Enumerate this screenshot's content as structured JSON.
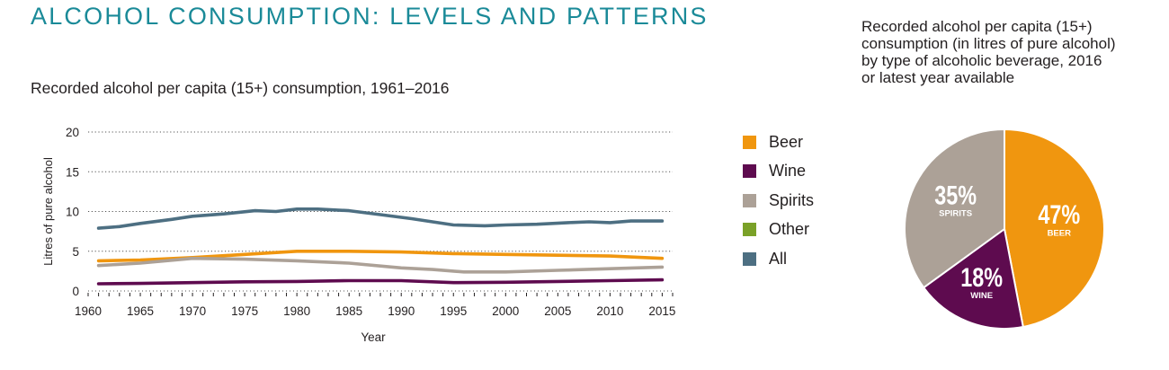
{
  "page": {
    "title": "ALCOHOL CONSUMPTION: LEVELS AND PATTERNS"
  },
  "colors": {
    "title": "#1a8a98",
    "beer": "#f0960f",
    "wine": "#5e0b4f",
    "spirits": "#aca197",
    "other": "#7aa128",
    "all": "#4d6f82",
    "grid": "#555555"
  },
  "chart_data": [
    {
      "type": "line",
      "title": "Recorded alcohol per capita (15+) consumption, 1961–2016",
      "xlabel": "Year",
      "ylabel": "Litres of pure alcohol",
      "xlim": [
        1960,
        2016
      ],
      "ylim": [
        0,
        20
      ],
      "x_ticks": [
        "1960",
        "1965",
        "1970",
        "1975",
        "1980",
        "1985",
        "1990",
        "1995",
        "2000",
        "2005",
        "2010",
        "2015"
      ],
      "y_ticks": [
        "0",
        "5",
        "10",
        "15",
        "20"
      ],
      "grid": "horizontal-dotted",
      "legend_position": "right",
      "legend": [
        "Beer",
        "Wine",
        "Spirits",
        "Other",
        "All"
      ],
      "series": [
        {
          "name": "All",
          "color": "#4d6f82",
          "points": [
            [
              1961,
              7.9
            ],
            [
              1963,
              8.1
            ],
            [
              1965,
              8.5
            ],
            [
              1968,
              9.0
            ],
            [
              1970,
              9.4
            ],
            [
              1973,
              9.7
            ],
            [
              1976,
              10.1
            ],
            [
              1978,
              10.0
            ],
            [
              1980,
              10.3
            ],
            [
              1982,
              10.3
            ],
            [
              1985,
              10.1
            ],
            [
              1988,
              9.6
            ],
            [
              1991,
              9.1
            ],
            [
              1993,
              8.7
            ],
            [
              1995,
              8.3
            ],
            [
              1998,
              8.2
            ],
            [
              2000,
              8.3
            ],
            [
              2003,
              8.4
            ],
            [
              2006,
              8.6
            ],
            [
              2008,
              8.7
            ],
            [
              2010,
              8.6
            ],
            [
              2012,
              8.8
            ],
            [
              2015,
              8.8
            ]
          ]
        },
        {
          "name": "Beer",
          "color": "#f0960f",
          "points": [
            [
              1961,
              3.8
            ],
            [
              1965,
              3.9
            ],
            [
              1970,
              4.2
            ],
            [
              1975,
              4.6
            ],
            [
              1980,
              5.0
            ],
            [
              1985,
              5.0
            ],
            [
              1990,
              4.9
            ],
            [
              1995,
              4.7
            ],
            [
              2000,
              4.6
            ],
            [
              2005,
              4.5
            ],
            [
              2010,
              4.4
            ],
            [
              2015,
              4.1
            ]
          ]
        },
        {
          "name": "Spirits",
          "color": "#aca197",
          "points": [
            [
              1961,
              3.2
            ],
            [
              1965,
              3.5
            ],
            [
              1970,
              4.1
            ],
            [
              1975,
              4.0
            ],
            [
              1980,
              3.8
            ],
            [
              1985,
              3.5
            ],
            [
              1990,
              2.9
            ],
            [
              1993,
              2.7
            ],
            [
              1996,
              2.4
            ],
            [
              2000,
              2.4
            ],
            [
              2005,
              2.6
            ],
            [
              2010,
              2.8
            ],
            [
              2015,
              3.0
            ]
          ]
        },
        {
          "name": "Wine",
          "color": "#5e0b4f",
          "points": [
            [
              1961,
              0.9
            ],
            [
              1965,
              0.95
            ],
            [
              1970,
              1.05
            ],
            [
              1975,
              1.15
            ],
            [
              1980,
              1.2
            ],
            [
              1985,
              1.3
            ],
            [
              1990,
              1.3
            ],
            [
              1995,
              1.05
            ],
            [
              2000,
              1.1
            ],
            [
              2005,
              1.2
            ],
            [
              2010,
              1.3
            ],
            [
              2015,
              1.4
            ]
          ]
        },
        {
          "name": "Other",
          "color": "#7aa128",
          "points": []
        }
      ]
    },
    {
      "type": "pie",
      "title_lines": [
        "Recorded alcohol per capita (15+)",
        "consumption (in litres of pure alcohol)",
        "by type of alcoholic beverage, 2016",
        "or latest year available"
      ],
      "slices": [
        {
          "label": "BEER",
          "value": 47,
          "value_label": "47%",
          "color": "#f0960f"
        },
        {
          "label": "WINE",
          "value": 18,
          "value_label": "18%",
          "color": "#5e0b4f"
        },
        {
          "label": "SPIRITS",
          "value": 35,
          "value_label": "35%",
          "color": "#aca197"
        }
      ]
    }
  ]
}
